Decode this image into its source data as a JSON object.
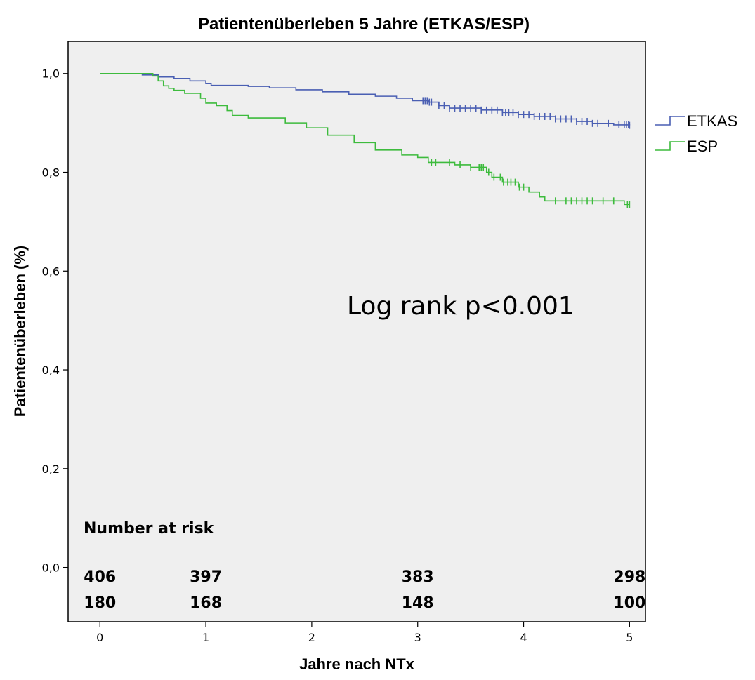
{
  "chart_data": {
    "type": "line",
    "title": "Patientenüberleben 5 Jahre (ETKAS/ESP)",
    "xlabel": "Jahre nach NTx",
    "ylabel": "Patientenüberleben (%)",
    "xlim": [
      -0.3,
      5.15
    ],
    "ylim": [
      -0.11,
      1.065
    ],
    "x_ticks": [
      0,
      1,
      2,
      3,
      4,
      5
    ],
    "x_tick_labels": [
      "0",
      "1",
      "2",
      "3",
      "4",
      "5"
    ],
    "y_ticks": [
      0.0,
      0.2,
      0.4,
      0.6,
      0.8,
      1.0
    ],
    "y_tick_labels": [
      "0,0",
      "0,2",
      "0,4",
      "0,6",
      "0,8",
      "1,0"
    ],
    "grid": false,
    "legend_position": "right",
    "background": "#efefef",
    "series": [
      {
        "name": "ETKAS",
        "color": "#4a5fb3",
        "step_points": [
          [
            0,
            1.0
          ],
          [
            0.4,
            0.997
          ],
          [
            0.55,
            0.993
          ],
          [
            0.7,
            0.99
          ],
          [
            0.85,
            0.985
          ],
          [
            1.0,
            0.98
          ],
          [
            1.05,
            0.976
          ],
          [
            1.4,
            0.974
          ],
          [
            1.6,
            0.971
          ],
          [
            1.85,
            0.967
          ],
          [
            2.1,
            0.963
          ],
          [
            2.35,
            0.958
          ],
          [
            2.6,
            0.954
          ],
          [
            2.8,
            0.95
          ],
          [
            2.95,
            0.945
          ],
          [
            3.1,
            0.942
          ],
          [
            3.2,
            0.935
          ],
          [
            3.3,
            0.93
          ],
          [
            3.6,
            0.926
          ],
          [
            3.8,
            0.921
          ],
          [
            3.95,
            0.917
          ],
          [
            4.1,
            0.913
          ],
          [
            4.3,
            0.908
          ],
          [
            4.5,
            0.903
          ],
          [
            4.65,
            0.899
          ],
          [
            4.85,
            0.896
          ],
          [
            5.0,
            0.895
          ]
        ],
        "censor_x": [
          3.05,
          3.07,
          3.09,
          3.11,
          3.13,
          3.2,
          3.25,
          3.3,
          3.35,
          3.4,
          3.45,
          3.5,
          3.55,
          3.6,
          3.65,
          3.7,
          3.75,
          3.8,
          3.83,
          3.86,
          3.9,
          3.95,
          4.0,
          4.05,
          4.1,
          4.15,
          4.2,
          4.25,
          4.3,
          4.35,
          4.4,
          4.45,
          4.5,
          4.55,
          4.6,
          4.65,
          4.7,
          4.8,
          4.9,
          4.95,
          4.97,
          4.99,
          5.0
        ]
      },
      {
        "name": "ESP",
        "color": "#3dbb3d",
        "step_points": [
          [
            0,
            1.0
          ],
          [
            0.5,
            0.995
          ],
          [
            0.55,
            0.985
          ],
          [
            0.6,
            0.975
          ],
          [
            0.65,
            0.97
          ],
          [
            0.7,
            0.966
          ],
          [
            0.8,
            0.96
          ],
          [
            0.95,
            0.95
          ],
          [
            1.0,
            0.94
          ],
          [
            1.1,
            0.935
          ],
          [
            1.2,
            0.925
          ],
          [
            1.25,
            0.915
          ],
          [
            1.4,
            0.91
          ],
          [
            1.75,
            0.9
          ],
          [
            1.95,
            0.89
          ],
          [
            2.15,
            0.875
          ],
          [
            2.4,
            0.86
          ],
          [
            2.6,
            0.845
          ],
          [
            2.85,
            0.835
          ],
          [
            3.0,
            0.83
          ],
          [
            3.1,
            0.82
          ],
          [
            3.35,
            0.815
          ],
          [
            3.5,
            0.81
          ],
          [
            3.65,
            0.8
          ],
          [
            3.7,
            0.79
          ],
          [
            3.8,
            0.78
          ],
          [
            3.95,
            0.77
          ],
          [
            4.05,
            0.76
          ],
          [
            4.15,
            0.75
          ],
          [
            4.2,
            0.742
          ],
          [
            4.95,
            0.735
          ],
          [
            5.0,
            0.735
          ]
        ],
        "censor_x": [
          3.13,
          3.17,
          3.3,
          3.4,
          3.5,
          3.58,
          3.6,
          3.62,
          3.67,
          3.72,
          3.78,
          3.81,
          3.85,
          3.88,
          3.92,
          3.96,
          4.0,
          4.3,
          4.4,
          4.45,
          4.5,
          4.55,
          4.6,
          4.65,
          4.75,
          4.85,
          4.98,
          5.0
        ]
      }
    ],
    "annotation": "Log rank p<0.001",
    "number_at_risk": {
      "heading": "Number at risk",
      "x_positions": [
        0,
        1,
        3,
        5
      ],
      "rows": [
        {
          "series": "ETKAS",
          "values": [
            "406",
            "397",
            "383",
            "298"
          ]
        },
        {
          "series": "ESP",
          "values": [
            "180",
            "168",
            "148",
            "100"
          ]
        }
      ]
    }
  }
}
